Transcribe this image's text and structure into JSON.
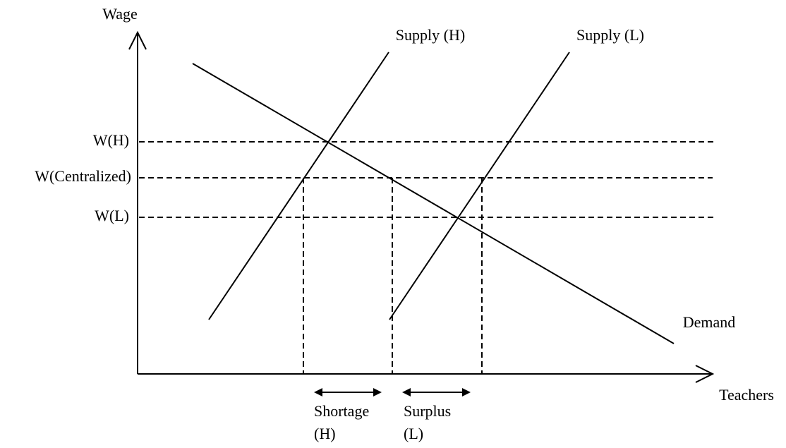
{
  "axes": {
    "y_label": "Wage",
    "x_label": "Teachers"
  },
  "curves": [
    {
      "label": "Supply (H)"
    },
    {
      "label": "Supply (L)"
    },
    {
      "label": "Demand"
    }
  ],
  "wage_levels": [
    {
      "label": "W(H)"
    },
    {
      "label": "W(Centralized)"
    },
    {
      "label": "W(L)"
    }
  ],
  "gaps": [
    {
      "label": "Shortage",
      "sublabel": "(H)"
    },
    {
      "label": "Surplus",
      "sublabel": "(L)"
    }
  ]
}
